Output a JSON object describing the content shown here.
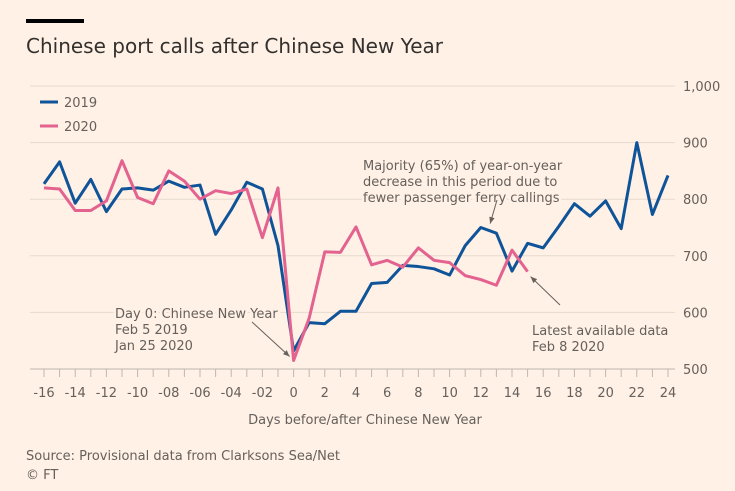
{
  "header": {
    "title": "Chinese port calls after Chinese New Year"
  },
  "footer": {
    "source": "Source: Provisional data from Clarksons Sea/Net",
    "credit": "© FT"
  },
  "chart_data": {
    "type": "line",
    "title": "Chinese port calls after Chinese New Year",
    "xlabel": "Days before/after Chinese New Year",
    "ylabel": "",
    "xlim": [
      -16,
      24
    ],
    "ylim": [
      500,
      1000
    ],
    "x_ticks": [
      "-16",
      "-14",
      "-12",
      "-10",
      "-08",
      "-06",
      "-04",
      "-02",
      "0",
      "2",
      "4",
      "6",
      "8",
      "10",
      "12",
      "14",
      "16",
      "18",
      "20",
      "22",
      "24"
    ],
    "y_ticks": [
      "500",
      "600",
      "700",
      "800",
      "900",
      "1,000"
    ],
    "legend_placement": "top-left",
    "series": [
      {
        "name": "2019",
        "color": "#0F5499",
        "start_x": -16,
        "values": [
          827,
          866,
          793,
          835,
          778,
          818,
          820,
          816,
          832,
          821,
          825,
          738,
          781,
          830,
          818,
          718,
          532,
          582,
          580,
          602,
          602,
          651,
          653,
          683,
          681,
          677,
          666,
          718,
          750,
          740,
          673,
          722,
          714,
          752,
          792,
          770,
          797,
          748,
          900,
          773,
          842
        ]
      },
      {
        "name": "2020",
        "color": "#E3628F",
        "start_x": -16,
        "values": [
          820,
          818,
          780,
          780,
          797,
          868,
          803,
          792,
          850,
          832,
          800,
          815,
          810,
          818,
          732,
          820,
          515,
          590,
          707,
          706,
          751,
          684,
          692,
          680,
          714,
          692,
          688,
          665,
          658,
          648,
          710,
          672
        ]
      }
    ],
    "annotations": [
      {
        "lines": [
          "Day 0: Chinese New Year",
          "Feb 5 2019",
          "Jan 25 2020"
        ],
        "points_to": [
          0,
          520
        ]
      },
      {
        "lines": [
          "Majority (65%) of year-on-year",
          "decrease in this period due to",
          "fewer passenger ferry callings"
        ],
        "points_to": [
          12.5,
          745
        ]
      },
      {
        "lines": [
          "Latest available data",
          "Feb 8 2020"
        ],
        "points_to": [
          15,
          672
        ]
      }
    ]
  }
}
